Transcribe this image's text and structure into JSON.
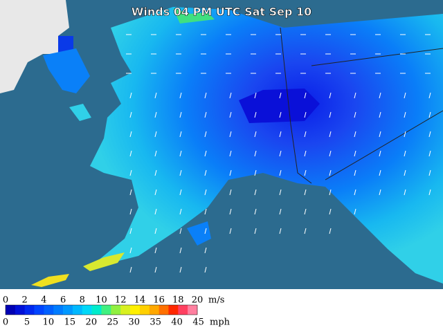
{
  "title": "Winds 04 PM UTC Sat Sep 10",
  "legend": {
    "ms_ticks": [
      0,
      2,
      4,
      6,
      8,
      10,
      12,
      14,
      16,
      18,
      20
    ],
    "ms_unit": "m/s",
    "mph_ticks": [
      0,
      5,
      10,
      15,
      20,
      25,
      30,
      35,
      40,
      45
    ],
    "mph_unit": "mph",
    "colors": [
      "#0000b4",
      "#0010d8",
      "#0028f0",
      "#0044ff",
      "#0060ff",
      "#007cff",
      "#0098ff",
      "#00b8ff",
      "#00d8f8",
      "#00eccc",
      "#40f080",
      "#90f040",
      "#d8f020",
      "#fff000",
      "#ffd000",
      "#ffa800",
      "#ff7000",
      "#ff2800",
      "#ff4060",
      "#ff80a0"
    ]
  }
}
